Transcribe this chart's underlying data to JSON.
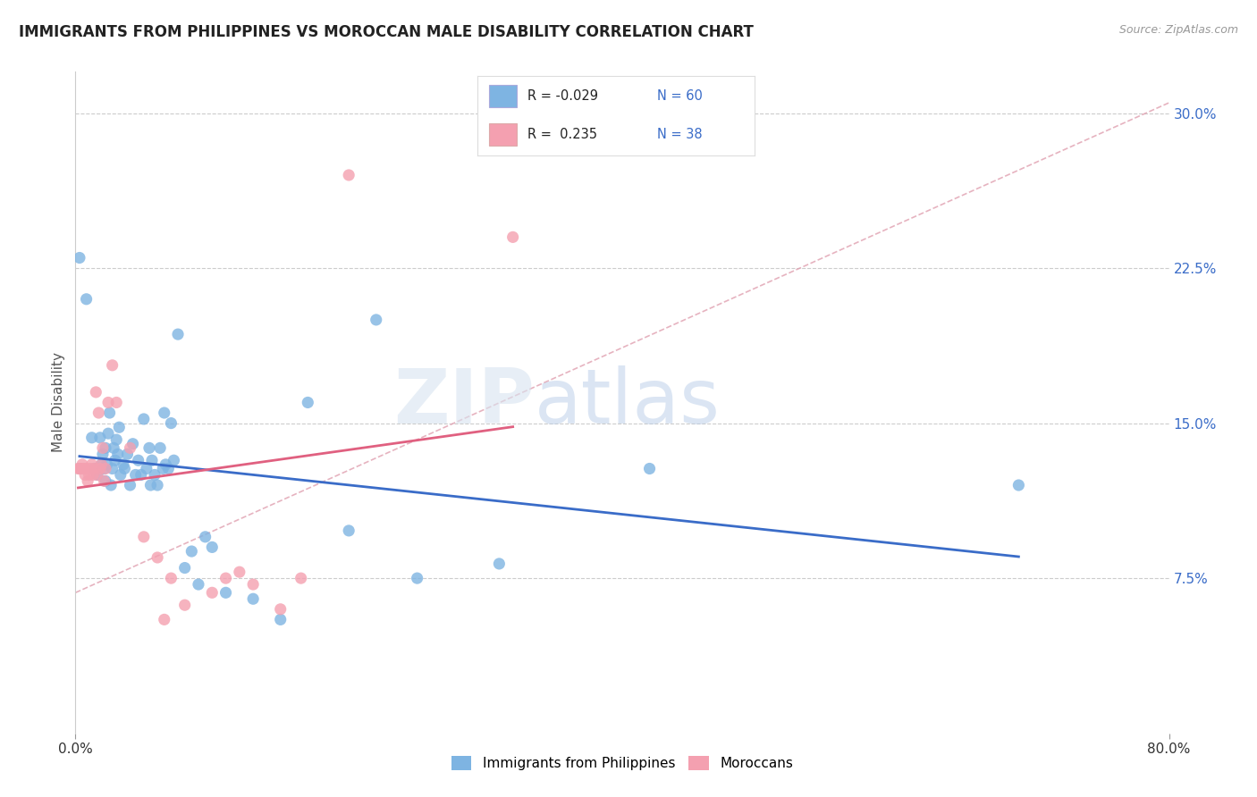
{
  "title": "IMMIGRANTS FROM PHILIPPINES VS MOROCCAN MALE DISABILITY CORRELATION CHART",
  "source": "Source: ZipAtlas.com",
  "ylabel": "Male Disability",
  "xlim": [
    0.0,
    0.8
  ],
  "ylim": [
    0.0,
    0.32
  ],
  "grid_color": "#cccccc",
  "watermark_zip": "ZIP",
  "watermark_atlas": "atlas",
  "blue_color": "#7EB4E2",
  "pink_color": "#F4A0B0",
  "blue_line_color": "#3A6CC8",
  "pink_line_color": "#E06080",
  "scatter_size": 90,
  "blue_points_x": [
    0.003,
    0.008,
    0.012,
    0.014,
    0.016,
    0.018,
    0.019,
    0.02,
    0.021,
    0.022,
    0.022,
    0.023,
    0.024,
    0.025,
    0.026,
    0.027,
    0.028,
    0.029,
    0.03,
    0.031,
    0.032,
    0.033,
    0.035,
    0.036,
    0.038,
    0.04,
    0.042,
    0.044,
    0.046,
    0.048,
    0.05,
    0.052,
    0.054,
    0.055,
    0.056,
    0.058,
    0.06,
    0.062,
    0.064,
    0.065,
    0.066,
    0.068,
    0.07,
    0.072,
    0.075,
    0.08,
    0.085,
    0.09,
    0.095,
    0.1,
    0.11,
    0.13,
    0.15,
    0.17,
    0.2,
    0.22,
    0.25,
    0.31,
    0.69,
    0.42
  ],
  "blue_points_y": [
    0.23,
    0.21,
    0.143,
    0.128,
    0.125,
    0.143,
    0.13,
    0.135,
    0.128,
    0.122,
    0.138,
    0.13,
    0.145,
    0.155,
    0.12,
    0.128,
    0.138,
    0.132,
    0.142,
    0.135,
    0.148,
    0.125,
    0.13,
    0.128,
    0.135,
    0.12,
    0.14,
    0.125,
    0.132,
    0.125,
    0.152,
    0.128,
    0.138,
    0.12,
    0.132,
    0.125,
    0.12,
    0.138,
    0.128,
    0.155,
    0.13,
    0.128,
    0.15,
    0.132,
    0.193,
    0.08,
    0.088,
    0.072,
    0.095,
    0.09,
    0.068,
    0.065,
    0.055,
    0.16,
    0.098,
    0.2,
    0.075,
    0.082,
    0.12,
    0.128
  ],
  "pink_points_x": [
    0.002,
    0.003,
    0.004,
    0.005,
    0.006,
    0.007,
    0.008,
    0.009,
    0.01,
    0.011,
    0.012,
    0.013,
    0.014,
    0.015,
    0.016,
    0.017,
    0.018,
    0.019,
    0.02,
    0.021,
    0.022,
    0.024,
    0.027,
    0.03,
    0.04,
    0.05,
    0.06,
    0.065,
    0.07,
    0.08,
    0.1,
    0.11,
    0.12,
    0.13,
    0.15,
    0.165,
    0.2,
    0.32
  ],
  "pink_points_y": [
    0.128,
    0.128,
    0.128,
    0.13,
    0.128,
    0.125,
    0.128,
    0.122,
    0.125,
    0.128,
    0.13,
    0.125,
    0.128,
    0.165,
    0.125,
    0.155,
    0.128,
    0.13,
    0.138,
    0.122,
    0.128,
    0.16,
    0.178,
    0.16,
    0.138,
    0.095,
    0.085,
    0.055,
    0.075,
    0.062,
    0.068,
    0.075,
    0.078,
    0.072,
    0.06,
    0.075,
    0.27,
    0.24
  ],
  "ref_line_x": [
    0.0,
    0.8
  ],
  "ref_line_y": [
    0.068,
    0.305
  ]
}
